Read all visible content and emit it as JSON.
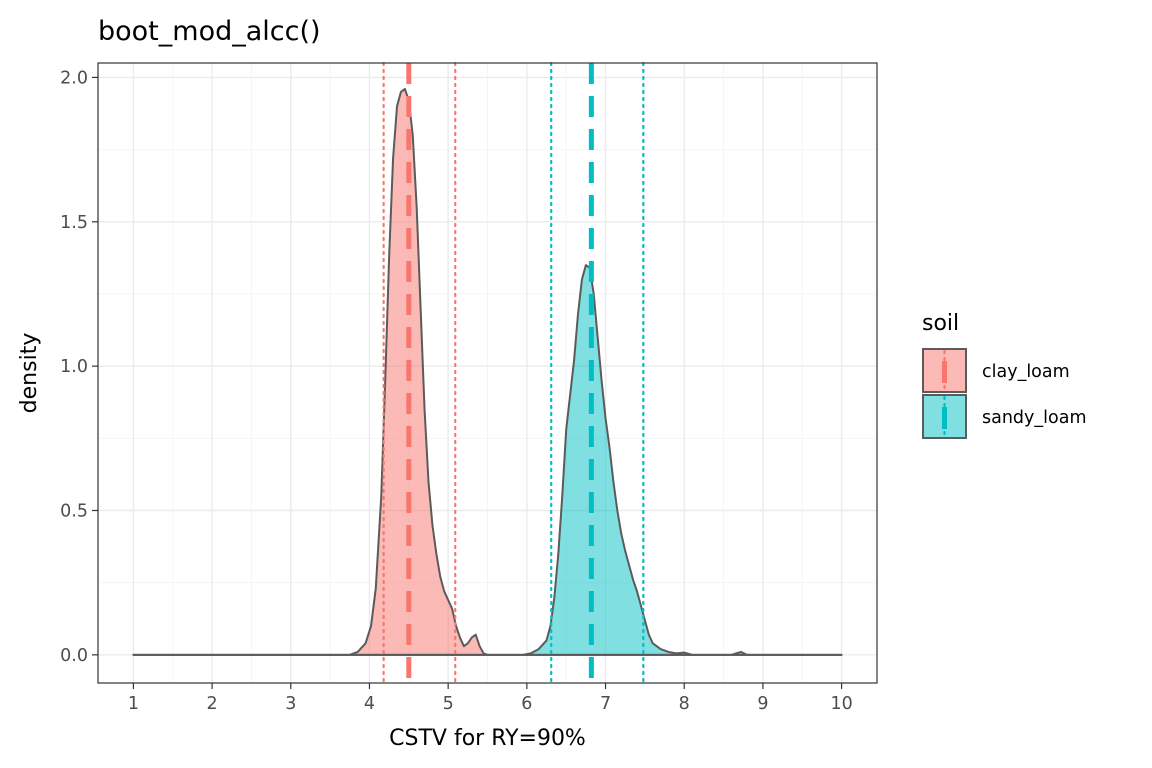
{
  "colors": {
    "clay_loam": "#F8766D",
    "sandy_loam": "#00BFC4",
    "outline": "#5b5b5b"
  },
  "chart_data": {
    "type": "area",
    "subtype": "density",
    "title": "boot_mod_alcc()",
    "xlabel": "CSTV for RY=90%",
    "ylabel": "density",
    "xlim": [
      0.55,
      10.45
    ],
    "ylim": [
      -0.0975,
      2.05
    ],
    "x_ticks": [
      1,
      2,
      3,
      4,
      5,
      6,
      7,
      8,
      9,
      10
    ],
    "x_tick_labels": [
      "1",
      "2",
      "3",
      "4",
      "5",
      "6",
      "7",
      "8",
      "9",
      "10"
    ],
    "y_ticks": [
      0.0,
      0.5,
      1.0,
      1.5,
      2.0
    ],
    "y_tick_labels": [
      "0.0",
      "0.5",
      "1.0",
      "1.5",
      "2.0"
    ],
    "grid": true,
    "legend": {
      "title": "soil",
      "position": "right",
      "entries": [
        "clay_loam",
        "sandy_loam"
      ]
    },
    "series": [
      {
        "name": "clay_loam",
        "color": "#F8766D",
        "median": 4.5,
        "lower": 4.18,
        "upper": 5.09,
        "x": [
          1.0,
          3.75,
          3.85,
          3.95,
          4.02,
          4.08,
          4.15,
          4.2,
          4.25,
          4.3,
          4.35,
          4.4,
          4.45,
          4.5,
          4.55,
          4.6,
          4.65,
          4.7,
          4.75,
          4.8,
          4.85,
          4.9,
          4.95,
          5.0,
          5.05,
          5.1,
          5.15,
          5.2,
          5.25,
          5.3,
          5.35,
          5.4,
          5.45,
          5.5,
          10.0
        ],
        "y": [
          0.0,
          0.0,
          0.01,
          0.04,
          0.1,
          0.23,
          0.55,
          0.95,
          1.38,
          1.72,
          1.9,
          1.95,
          1.96,
          1.92,
          1.8,
          1.55,
          1.2,
          0.85,
          0.6,
          0.45,
          0.35,
          0.27,
          0.22,
          0.19,
          0.16,
          0.1,
          0.06,
          0.03,
          0.04,
          0.06,
          0.07,
          0.03,
          0.005,
          0.0,
          0.0
        ]
      },
      {
        "name": "sandy_loam",
        "color": "#00BFC4",
        "median": 6.82,
        "lower": 6.31,
        "upper": 7.48,
        "x": [
          1.0,
          5.95,
          6.05,
          6.15,
          6.25,
          6.3,
          6.35,
          6.4,
          6.45,
          6.5,
          6.55,
          6.6,
          6.65,
          6.7,
          6.75,
          6.8,
          6.85,
          6.9,
          6.95,
          7.0,
          7.05,
          7.1,
          7.15,
          7.2,
          7.25,
          7.3,
          7.35,
          7.4,
          7.45,
          7.5,
          7.55,
          7.6,
          7.7,
          7.8,
          7.9,
          8.0,
          8.1,
          8.3,
          8.6,
          8.72,
          8.8,
          8.9,
          10.0
        ],
        "y": [
          0.0,
          0.0,
          0.005,
          0.02,
          0.05,
          0.1,
          0.2,
          0.35,
          0.55,
          0.78,
          0.9,
          1.02,
          1.18,
          1.3,
          1.35,
          1.34,
          1.25,
          1.1,
          0.95,
          0.82,
          0.72,
          0.6,
          0.5,
          0.42,
          0.36,
          0.31,
          0.26,
          0.22,
          0.17,
          0.12,
          0.07,
          0.04,
          0.02,
          0.01,
          0.005,
          0.008,
          0.0,
          0.0,
          0.0,
          0.01,
          0.0,
          0.0,
          0.0
        ]
      }
    ]
  }
}
